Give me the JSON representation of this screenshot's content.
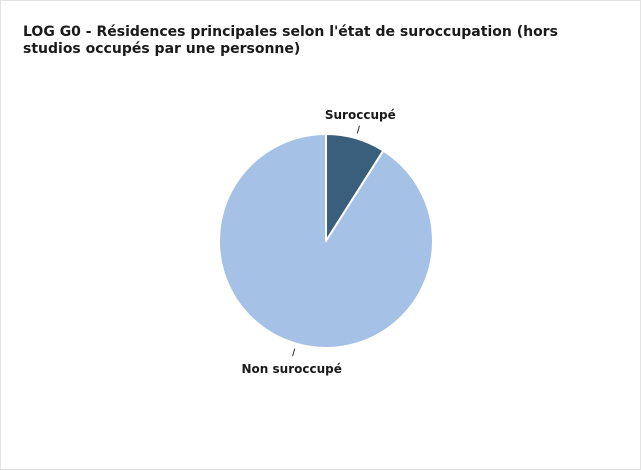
{
  "chart_data": {
    "type": "pie",
    "title": "LOG G0 - Résidences principales selon l'état de suroccupation (hors studios occupés par une personne)",
    "categories": [
      "Suroccupé",
      "Non suroccupé"
    ],
    "values": [
      9,
      91
    ],
    "unit": "%",
    "colors": [
      "#3a5f7c",
      "#a6c1e6"
    ],
    "legend": "none",
    "labels": "outside"
  }
}
